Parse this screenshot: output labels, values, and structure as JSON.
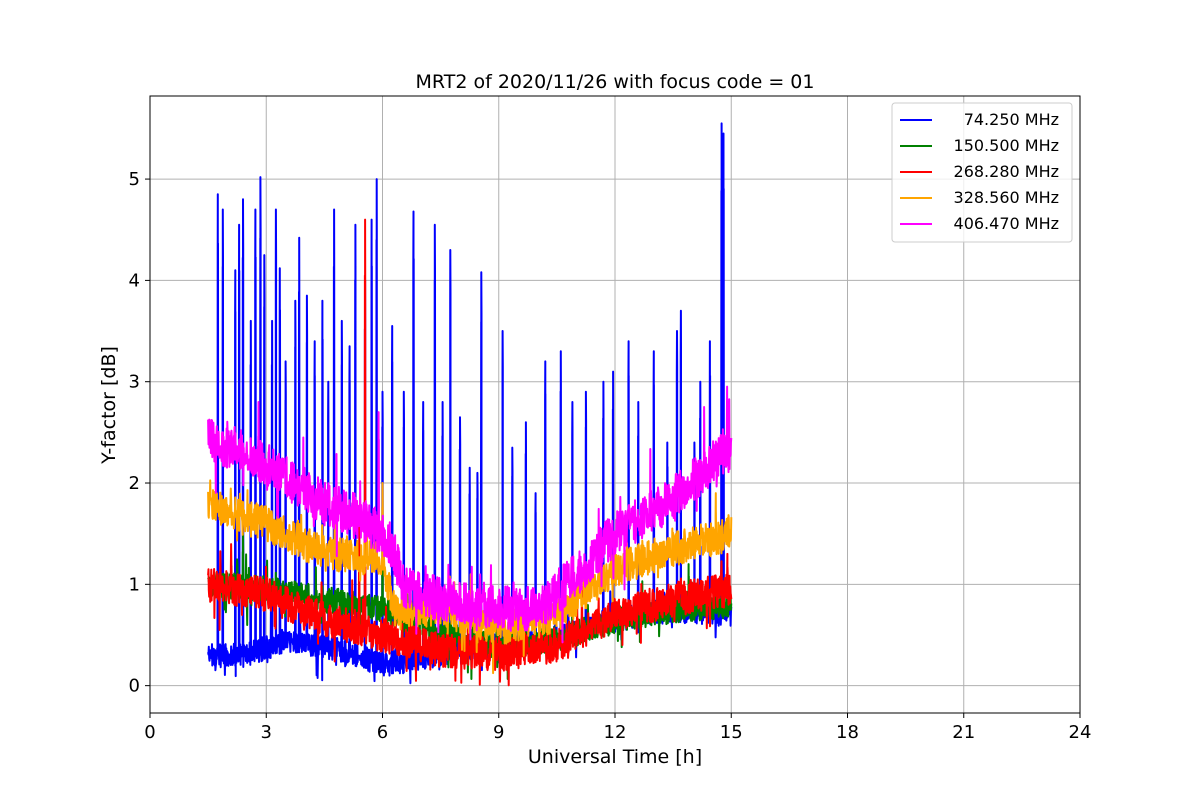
{
  "chart_data": {
    "type": "line",
    "title": "MRT2 of 2020/11/26 with focus code = 01",
    "xlabel": "Universal Time [h]",
    "ylabel": "Y-factor [dB]",
    "xlim": [
      0,
      24
    ],
    "ylim": [
      -0.27,
      5.82
    ],
    "xticks": [
      0,
      3,
      6,
      9,
      12,
      15,
      18,
      21,
      24
    ],
    "yticks": [
      0,
      1,
      2,
      3,
      4,
      5
    ],
    "grid": true,
    "legend_position": "top-right",
    "series": [
      {
        "name": " 74.250 MHz",
        "color": "#0000ff",
        "baseline": [
          [
            1.5,
            0.3
          ],
          [
            2.5,
            0.3
          ],
          [
            3.5,
            0.45
          ],
          [
            5.0,
            0.35
          ],
          [
            6.0,
            0.2
          ],
          [
            7.5,
            0.3
          ],
          [
            9.0,
            0.4
          ],
          [
            10.5,
            0.5
          ],
          [
            12.0,
            0.65
          ],
          [
            13.5,
            0.75
          ],
          [
            15.0,
            0.7
          ]
        ],
        "noise": 0.12,
        "spikes": [
          [
            1.75,
            4.85
          ],
          [
            1.88,
            4.7
          ],
          [
            2.2,
            4.1
          ],
          [
            2.3,
            4.55
          ],
          [
            2.4,
            4.8
          ],
          [
            2.6,
            3.6
          ],
          [
            2.72,
            4.7
          ],
          [
            2.85,
            5.02
          ],
          [
            2.95,
            4.25
          ],
          [
            3.15,
            3.6
          ],
          [
            3.25,
            4.7
          ],
          [
            3.35,
            4.12
          ],
          [
            3.5,
            3.2
          ],
          [
            3.75,
            3.8
          ],
          [
            3.85,
            4.42
          ],
          [
            4.05,
            3.85
          ],
          [
            4.25,
            3.4
          ],
          [
            4.45,
            3.8
          ],
          [
            4.6,
            3.0
          ],
          [
            4.75,
            4.7
          ],
          [
            4.95,
            3.6
          ],
          [
            5.15,
            3.35
          ],
          [
            5.3,
            4.55
          ],
          [
            5.55,
            4.0
          ],
          [
            5.72,
            4.6
          ],
          [
            5.85,
            5.0
          ],
          [
            6.0,
            2.9
          ],
          [
            6.25,
            3.55
          ],
          [
            6.55,
            2.9
          ],
          [
            6.8,
            4.68
          ],
          [
            7.05,
            2.8
          ],
          [
            7.35,
            4.55
          ],
          [
            7.55,
            2.8
          ],
          [
            7.75,
            4.3
          ],
          [
            8.0,
            2.65
          ],
          [
            8.25,
            2.15
          ],
          [
            8.45,
            2.1
          ],
          [
            8.55,
            4.08
          ],
          [
            9.1,
            3.5
          ],
          [
            9.35,
            2.35
          ],
          [
            9.7,
            2.6
          ],
          [
            9.95,
            1.9
          ],
          [
            10.2,
            3.2
          ],
          [
            10.6,
            3.3
          ],
          [
            10.9,
            2.8
          ],
          [
            11.25,
            2.9
          ],
          [
            11.7,
            3.0
          ],
          [
            11.95,
            3.1
          ],
          [
            12.35,
            3.4
          ],
          [
            12.6,
            2.8
          ],
          [
            13.0,
            3.3
          ],
          [
            13.35,
            2.4
          ],
          [
            13.6,
            3.5
          ],
          [
            13.7,
            3.7
          ],
          [
            14.05,
            2.4
          ],
          [
            14.2,
            3.0
          ],
          [
            14.45,
            3.4
          ],
          [
            14.75,
            5.55
          ],
          [
            14.8,
            5.45
          ]
        ]
      },
      {
        "name": "150.500 MHz",
        "color": "#008000",
        "baseline": [
          [
            1.5,
            1.0
          ],
          [
            3.0,
            0.95
          ],
          [
            4.5,
            0.85
          ],
          [
            6.0,
            0.75
          ],
          [
            7.5,
            0.5
          ],
          [
            9.0,
            0.4
          ],
          [
            10.5,
            0.45
          ],
          [
            12.0,
            0.65
          ],
          [
            13.5,
            0.75
          ],
          [
            15.0,
            0.8
          ]
        ],
        "noise": 0.13,
        "spikes": [
          [
            2.4,
            1.5
          ],
          [
            6.0,
            1.4
          ],
          [
            13.9,
            1.2
          ]
        ]
      },
      {
        "name": "268.280 MHz",
        "color": "#ff0000",
        "baseline": [
          [
            1.5,
            1.0
          ],
          [
            3.0,
            0.9
          ],
          [
            4.5,
            0.65
          ],
          [
            6.0,
            0.5
          ],
          [
            7.5,
            0.35
          ],
          [
            9.0,
            0.3
          ],
          [
            10.5,
            0.4
          ],
          [
            12.0,
            0.7
          ],
          [
            13.5,
            0.85
          ],
          [
            15.0,
            0.95
          ]
        ],
        "noise": 0.17,
        "spikes": [
          [
            5.55,
            4.6
          ],
          [
            5.4,
            1.6
          ],
          [
            14.9,
            1.3
          ]
        ]
      },
      {
        "name": "328.560 MHz",
        "color": "#ffa500",
        "baseline": [
          [
            1.5,
            1.8
          ],
          [
            3.0,
            1.6
          ],
          [
            4.5,
            1.3
          ],
          [
            6.0,
            1.25
          ],
          [
            6.3,
            0.75
          ],
          [
            7.5,
            0.75
          ],
          [
            9.0,
            0.55
          ],
          [
            10.5,
            0.7
          ],
          [
            12.0,
            1.15
          ],
          [
            13.5,
            1.35
          ],
          [
            15.0,
            1.5
          ]
        ],
        "noise": 0.17,
        "spikes": [
          [
            6.0,
            2.0
          ],
          [
            14.6,
            1.9
          ]
        ]
      },
      {
        "name": "406.470 MHz",
        "color": "#ff00ff",
        "baseline": [
          [
            1.5,
            2.45
          ],
          [
            3.0,
            2.2
          ],
          [
            4.5,
            1.8
          ],
          [
            5.5,
            1.65
          ],
          [
            6.2,
            1.4
          ],
          [
            6.6,
            0.95
          ],
          [
            7.5,
            0.85
          ],
          [
            9.0,
            0.78
          ],
          [
            10.0,
            0.75
          ],
          [
            11.0,
            1.1
          ],
          [
            12.0,
            1.5
          ],
          [
            13.5,
            1.85
          ],
          [
            15.0,
            2.35
          ]
        ],
        "noise": 0.22,
        "spikes": [
          [
            2.8,
            2.8
          ],
          [
            5.9,
            2.7
          ],
          [
            14.3,
            2.75
          ]
        ]
      }
    ]
  }
}
